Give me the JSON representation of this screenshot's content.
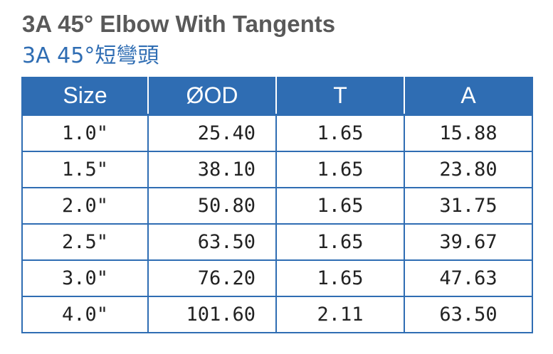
{
  "title": {
    "english": "3A 45° Elbow With Tangents",
    "chinese": "3A 45°短彎頭"
  },
  "table": {
    "headers": [
      "Size",
      "ØOD",
      "T",
      "A"
    ],
    "rows": [
      [
        "1.0\"",
        "25.40",
        "1.65",
        "15.88"
      ],
      [
        "1.5\"",
        "38.10",
        "1.65",
        "23.80"
      ],
      [
        "2.0\"",
        "50.80",
        "1.65",
        "31.75"
      ],
      [
        "2.5\"",
        "63.50",
        "1.65",
        "39.67"
      ],
      [
        "3.0\"",
        "76.20",
        "1.65",
        "47.63"
      ],
      [
        "4.0\"",
        "101.60",
        "2.11",
        "63.50"
      ]
    ]
  },
  "colors": {
    "header_bg": "#2f6db3",
    "title_en": "#595959",
    "title_zh": "#2f6db3"
  }
}
